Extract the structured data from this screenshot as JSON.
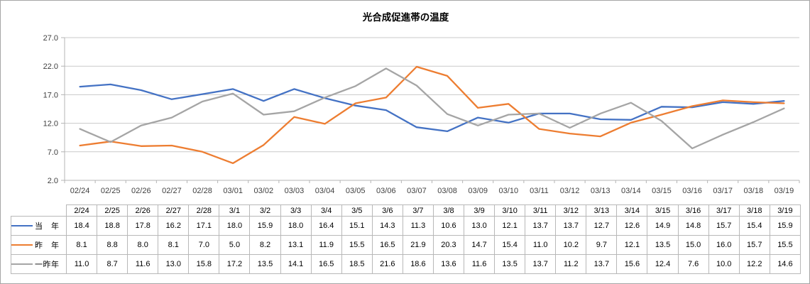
{
  "chart_data": {
    "type": "line",
    "title": "光合成促進帯の温度",
    "x": [
      "02/24",
      "02/25",
      "02/26",
      "02/27",
      "02/28",
      "03/01",
      "03/02",
      "03/03",
      "03/04",
      "03/05",
      "03/06",
      "03/07",
      "03/08",
      "03/09",
      "03/10",
      "03/11",
      "03/12",
      "03/13",
      "03/14",
      "03/15",
      "03/16",
      "03/17",
      "03/18",
      "03/19"
    ],
    "series": [
      {
        "name": "当　年",
        "color": "#4472C4",
        "values": [
          18.4,
          18.8,
          17.8,
          16.2,
          17.1,
          18.0,
          15.9,
          18.0,
          16.4,
          15.1,
          14.3,
          11.3,
          10.6,
          13.0,
          12.1,
          13.7,
          13.7,
          12.7,
          12.6,
          14.9,
          14.8,
          15.7,
          15.4,
          15.9
        ]
      },
      {
        "name": "昨　年",
        "color": "#ED7D31",
        "values": [
          8.1,
          8.8,
          8.0,
          8.1,
          7.0,
          5.0,
          8.2,
          13.1,
          11.9,
          15.5,
          16.5,
          21.9,
          20.3,
          14.7,
          15.4,
          11.0,
          10.2,
          9.7,
          12.1,
          13.5,
          15.0,
          16.0,
          15.7,
          15.5
        ]
      },
      {
        "name": "一昨年",
        "color": "#A5A5A5",
        "values": [
          11.0,
          8.7,
          11.6,
          13.0,
          15.8,
          17.2,
          13.5,
          14.1,
          16.5,
          18.5,
          21.6,
          18.6,
          13.6,
          11.6,
          13.5,
          13.7,
          11.2,
          13.7,
          15.6,
          12.4,
          7.6,
          10.0,
          12.2,
          14.6
        ]
      }
    ],
    "ylim": [
      2.0,
      27.0
    ],
    "ytick_labels": [
      "27.0",
      "22.0",
      "17.0",
      "12.0",
      "7.0",
      "2.0"
    ],
    "grid": true,
    "legend_position": "table-left-column"
  },
  "table": {
    "corner_label": "",
    "header_dates": [
      "2/24",
      "2/25",
      "2/26",
      "2/27",
      "2/28",
      "3/1",
      "3/2",
      "3/3",
      "3/4",
      "3/5",
      "3/6",
      "3/7",
      "3/8",
      "3/9",
      "3/10",
      "3/11",
      "3/12",
      "3/13",
      "3/14",
      "3/15",
      "3/16",
      "3/17",
      "3/18",
      "3/19"
    ]
  },
  "colors": {
    "gridline": "#c9c9c9",
    "axis_line": "#b4b4b4",
    "axis_text": "#404040",
    "frame_border": "#a6a6a6",
    "table_border": "#b8b8b8",
    "series_blue": "#4472C4",
    "series_orange": "#ED7D31",
    "series_gray": "#A5A5A5"
  }
}
